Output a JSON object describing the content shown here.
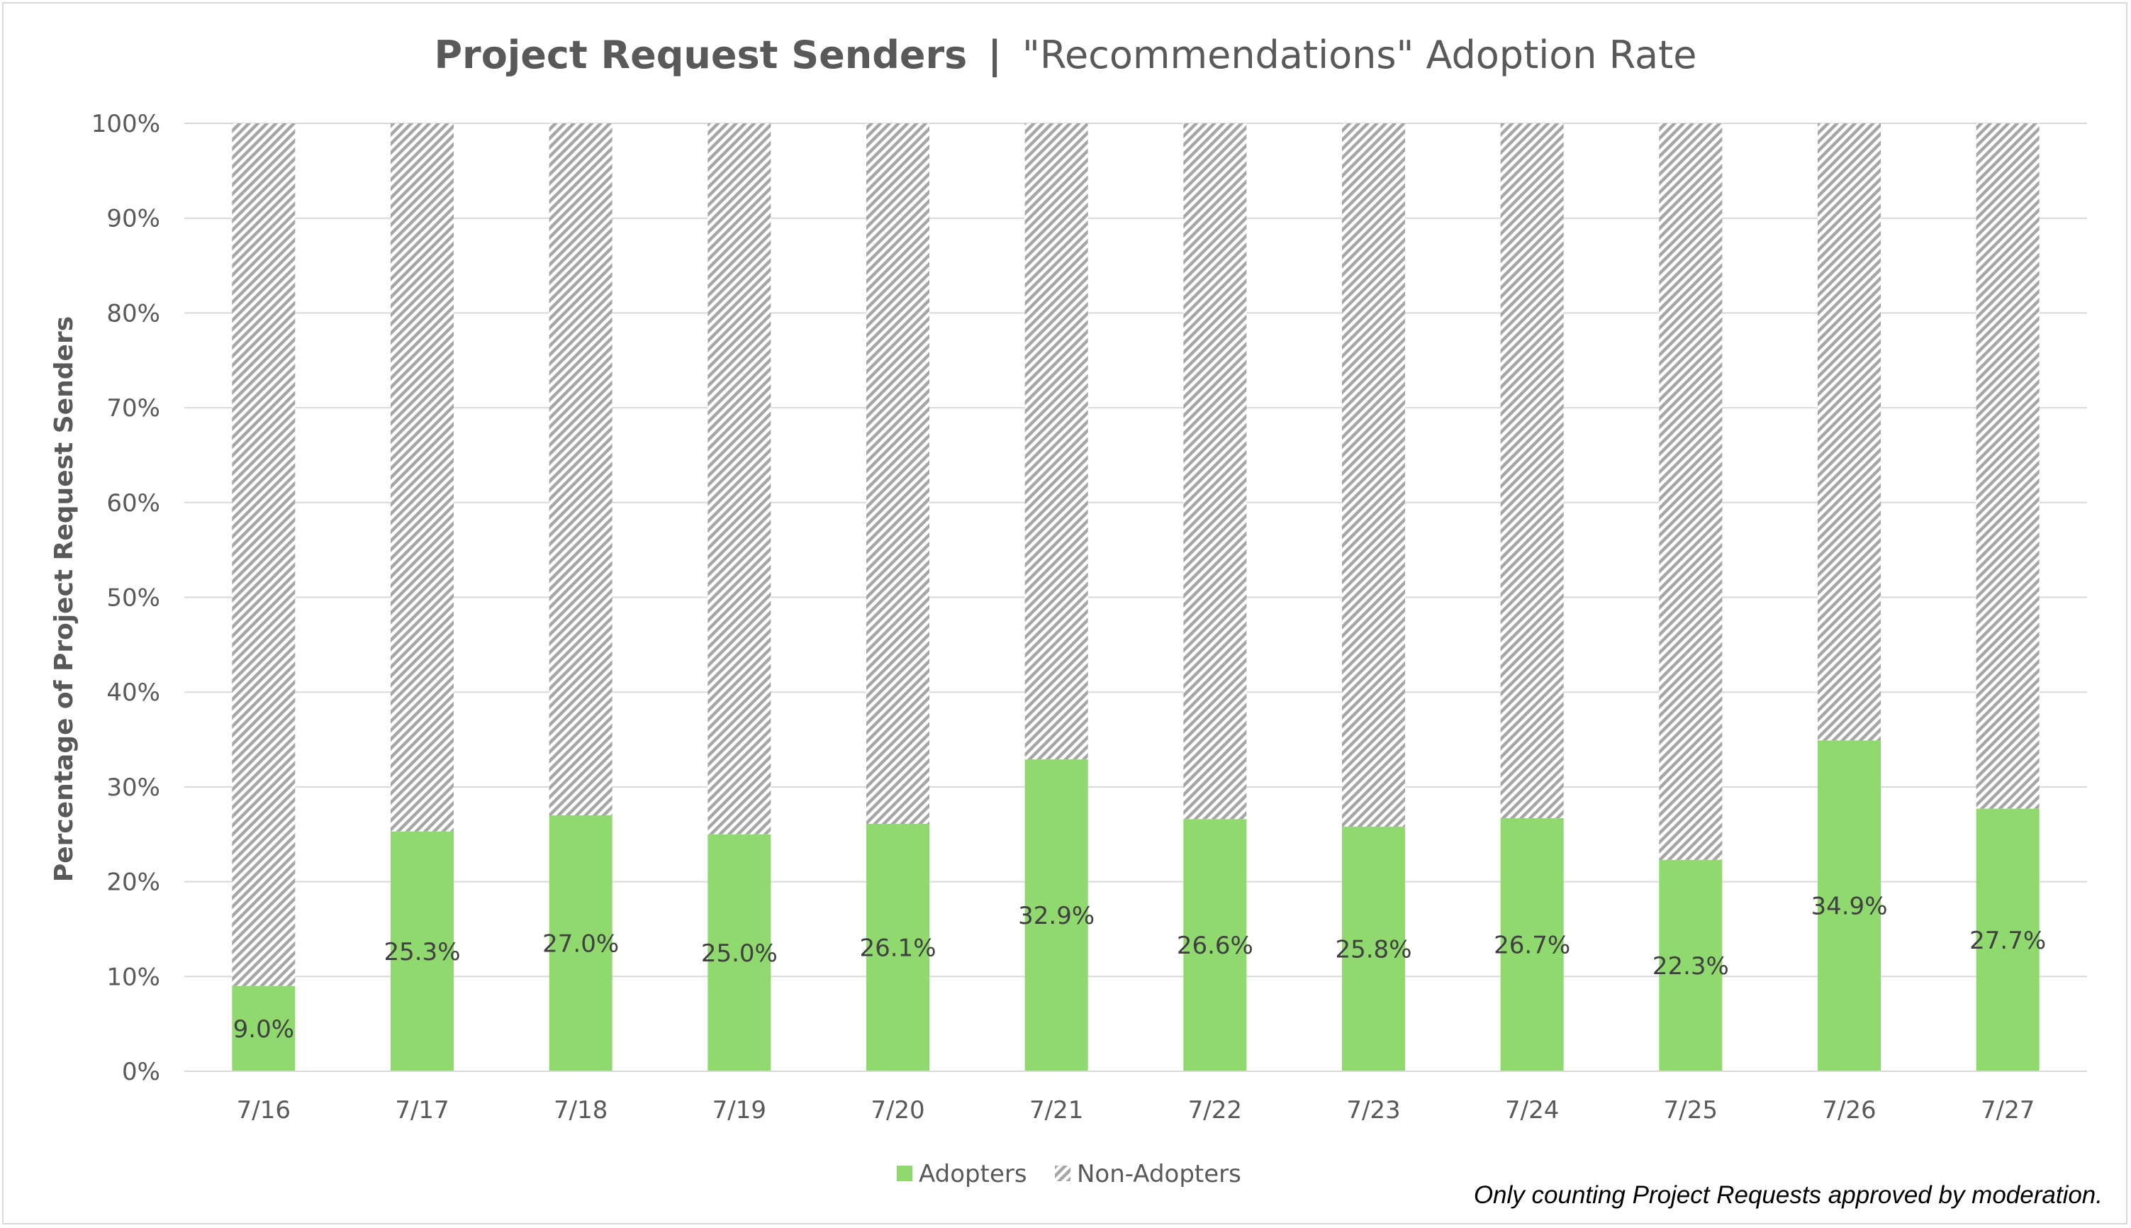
{
  "chart_data": {
    "type": "bar",
    "stacked": true,
    "percent_stacked": true,
    "title_bold": "Project Request Senders",
    "title_separator": "|",
    "title_rest": "\"Recommendations\" Adoption Rate",
    "xlabel": "",
    "ylabel": "Percentage of Project Request Senders",
    "ylim": [
      0,
      100
    ],
    "yticks": [
      "0%",
      "10%",
      "20%",
      "30%",
      "40%",
      "50%",
      "60%",
      "70%",
      "80%",
      "90%",
      "100%"
    ],
    "grid": true,
    "legend_position": "bottom",
    "categories": [
      "7/16",
      "7/17",
      "7/18",
      "7/19",
      "7/20",
      "7/21",
      "7/22",
      "7/23",
      "7/24",
      "7/25",
      "7/26",
      "7/27"
    ],
    "series": [
      {
        "name": "Adopters",
        "color": "#8fd96f",
        "pattern": "solid",
        "values": [
          9.0,
          25.3,
          27.0,
          25.0,
          26.1,
          32.9,
          26.6,
          25.8,
          26.7,
          22.3,
          34.9,
          27.7
        ],
        "labels": [
          "9.0%",
          "25.3%",
          "27.0%",
          "25.0%",
          "26.1%",
          "32.9%",
          "26.6%",
          "25.8%",
          "26.7%",
          "22.3%",
          "34.9%",
          "27.7%"
        ]
      },
      {
        "name": "Non-Adopters",
        "color": "#a6a6a6",
        "pattern": "diagonal-stripes",
        "values": [
          91.0,
          74.7,
          73.0,
          75.0,
          73.9,
          67.1,
          73.4,
          74.2,
          73.3,
          77.7,
          65.1,
          72.3
        ]
      }
    ],
    "footnote": "Only counting Project Requests approved by moderation."
  },
  "colors": {
    "axis_text": "#595959",
    "title_text": "#595959",
    "gridline": "#d9d9d9",
    "label_text": "#404040"
  }
}
